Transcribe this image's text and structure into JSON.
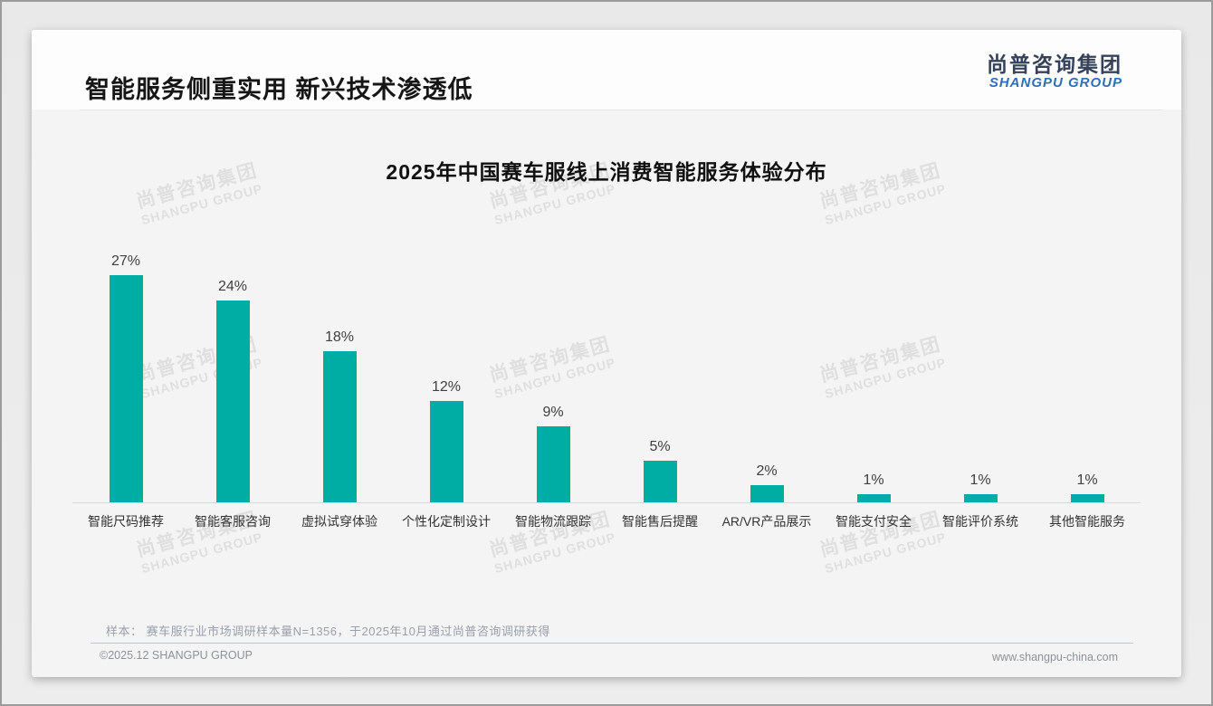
{
  "page": {
    "title": "智能服务侧重实用 新兴技术渗透低"
  },
  "logo": {
    "cn": "尚普咨询集团",
    "en": "SHANGPU GROUP",
    "cn_color": "#36425a",
    "en_color": "#2e6fb7"
  },
  "chart_data": {
    "type": "bar",
    "title": "2025年中国赛车服线上消费智能服务体验分布",
    "categories": [
      "智能尺码推荐",
      "智能客服咨询",
      "虚拟试穿体验",
      "个性化定制设计",
      "智能物流跟踪",
      "智能售后提醒",
      "AR/VR产品展示",
      "智能支付安全",
      "智能评价系统",
      "其他智能服务"
    ],
    "values": [
      27,
      24,
      18,
      12,
      9,
      5,
      2,
      1,
      1,
      1
    ],
    "unit": "%",
    "bar_color": "#00ada4",
    "ylim": [
      0,
      30
    ],
    "grid": false,
    "legend": "none",
    "data_labels": true
  },
  "note": {
    "text": "样本： 赛车服行业市场调研样本量N=1356，于2025年10月通过尚普咨询调研获得"
  },
  "footer": {
    "copyright": "©2025.12 SHANGPU GROUP",
    "website": "www.shangpu-china.com"
  },
  "watermark": {
    "line1": "尚普咨询集团",
    "line2": "SHANGPU GROUP"
  }
}
